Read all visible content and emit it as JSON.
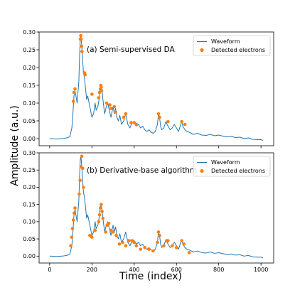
{
  "figure": {
    "xlabel": "Time (index)",
    "ylabel": "Amplitude (a.u.)"
  },
  "colors": {
    "waveform": "#1f77b4",
    "electrons": "#ff7f0e",
    "axes": "#000000",
    "legend_border": "#cccccc"
  },
  "chart_data": [
    {
      "type": "line",
      "title": "",
      "annotation": "(a) Semi-supervised DA",
      "xlabel": "",
      "ylabel": "",
      "xlim": [
        -50,
        1060
      ],
      "ylim": [
        -0.02,
        0.3
      ],
      "xticks": [
        0,
        200,
        400,
        600,
        800,
        1000
      ],
      "xtick_labels": [
        "",
        "",
        "",
        "",
        "",
        ""
      ],
      "yticks": [
        0.0,
        0.05,
        0.1,
        0.15,
        0.2,
        0.25,
        0.3
      ],
      "ytick_labels": [
        "0.00",
        "0.05",
        "0.10",
        "0.15",
        "0.20",
        "0.25",
        "0.30"
      ],
      "legend": {
        "position": "top-right",
        "entries": [
          "Waveform",
          "Detected electrons"
        ]
      },
      "series": [
        {
          "name": "Waveform",
          "kind": "line",
          "x": [
            0,
            30,
            60,
            80,
            95,
            105,
            110,
            115,
            120,
            130,
            138,
            142,
            145,
            148,
            152,
            156,
            160,
            165,
            170,
            175,
            180,
            190,
            200,
            208,
            215,
            220,
            228,
            235,
            240,
            244,
            248,
            252,
            256,
            260,
            268,
            275,
            282,
            290,
            300,
            306,
            312,
            318,
            325,
            332,
            340,
            350,
            360,
            370,
            380,
            390,
            400,
            410,
            420,
            430,
            440,
            450,
            460,
            470,
            480,
            490,
            500,
            510,
            515,
            520,
            525,
            530,
            540,
            550,
            560,
            570,
            580,
            590,
            600,
            610,
            620,
            625,
            630,
            640,
            650,
            660,
            680,
            700,
            720,
            740,
            760,
            780,
            800,
            820,
            840,
            860,
            880,
            900,
            920,
            940,
            960,
            980,
            1000,
            1010
          ],
          "y": [
            0.0,
            -0.001,
            0.0,
            0.002,
            0.005,
            0.03,
            0.07,
            0.12,
            0.135,
            0.1,
            0.16,
            0.24,
            0.28,
            0.29,
            0.26,
            0.22,
            0.185,
            0.17,
            0.14,
            0.11,
            0.12,
            0.09,
            0.06,
            0.07,
            0.1,
            0.08,
            0.09,
            0.115,
            0.145,
            0.15,
            0.135,
            0.11,
            0.09,
            0.07,
            0.09,
            0.1,
            0.08,
            0.06,
            0.09,
            0.07,
            0.085,
            0.06,
            0.05,
            0.065,
            0.04,
            0.05,
            0.07,
            0.04,
            0.03,
            0.045,
            0.045,
            0.035,
            0.04,
            0.03,
            0.035,
            0.025,
            0.02,
            0.025,
            0.018,
            0.015,
            0.02,
            0.04,
            0.07,
            0.06,
            0.035,
            0.025,
            0.03,
            0.048,
            0.035,
            0.025,
            0.03,
            0.04,
            0.03,
            0.02,
            0.04,
            0.048,
            0.035,
            0.025,
            0.02,
            0.018,
            0.012,
            0.015,
            0.01,
            0.009,
            0.012,
            0.008,
            0.01,
            0.007,
            0.005,
            0.006,
            0.003,
            0.004,
            0.0,
            0.002,
            -0.002,
            -0.003,
            -0.003,
            -0.005
          ]
        },
        {
          "name": "Detected electrons",
          "kind": "scatter",
          "x": [
            112,
            115,
            120,
            145,
            147,
            149,
            151,
            153,
            165,
            168,
            200,
            232,
            236,
            240,
            242,
            244,
            246,
            270,
            285,
            290,
            306,
            312,
            350,
            360,
            385,
            400,
            410,
            515,
            520,
            560,
            625,
            640
          ],
          "y": [
            0.105,
            0.13,
            0.14,
            0.28,
            0.29,
            0.28,
            0.26,
            0.245,
            0.185,
            0.18,
            0.125,
            0.115,
            0.13,
            0.14,
            0.15,
            0.145,
            0.135,
            0.1,
            0.095,
            0.085,
            0.09,
            0.075,
            0.06,
            0.07,
            0.045,
            0.045,
            0.04,
            0.07,
            0.06,
            0.048,
            0.048,
            0.04
          ]
        }
      ]
    },
    {
      "type": "line",
      "title": "",
      "annotation": "(b) Derivative-base algorithm",
      "xlabel": "",
      "ylabel": "",
      "xlim": [
        -50,
        1060
      ],
      "ylim": [
        -0.02,
        0.3
      ],
      "xticks": [
        0,
        200,
        400,
        600,
        800,
        1000
      ],
      "xtick_labels": [
        "0",
        "200",
        "400",
        "600",
        "800",
        "1000"
      ],
      "yticks": [
        0.0,
        0.05,
        0.1,
        0.15,
        0.2,
        0.25,
        0.3
      ],
      "ytick_labels": [
        "0.00",
        "0.05",
        "0.10",
        "0.15",
        "0.20",
        "0.25",
        "0.30"
      ],
      "legend": {
        "position": "top-right",
        "entries": [
          "Waveform",
          "Detected electrons"
        ]
      },
      "series": [
        {
          "name": "Waveform",
          "kind": "line",
          "x": [
            0,
            30,
            60,
            80,
            95,
            105,
            110,
            115,
            120,
            130,
            138,
            142,
            145,
            148,
            152,
            156,
            160,
            165,
            170,
            175,
            180,
            190,
            200,
            208,
            215,
            220,
            228,
            235,
            240,
            244,
            248,
            252,
            256,
            260,
            268,
            275,
            282,
            290,
            300,
            306,
            312,
            318,
            325,
            332,
            340,
            350,
            360,
            370,
            380,
            390,
            400,
            410,
            420,
            430,
            440,
            450,
            460,
            470,
            480,
            490,
            500,
            510,
            515,
            520,
            525,
            530,
            540,
            550,
            560,
            570,
            580,
            590,
            600,
            610,
            620,
            625,
            630,
            640,
            650,
            660,
            680,
            700,
            720,
            740,
            760,
            780,
            800,
            820,
            840,
            860,
            880,
            900,
            920,
            940,
            960,
            980,
            1000,
            1010
          ],
          "y": [
            0.0,
            -0.001,
            0.0,
            0.002,
            0.005,
            0.03,
            0.07,
            0.12,
            0.135,
            0.1,
            0.16,
            0.24,
            0.28,
            0.29,
            0.26,
            0.22,
            0.185,
            0.17,
            0.14,
            0.11,
            0.12,
            0.09,
            0.06,
            0.07,
            0.1,
            0.08,
            0.09,
            0.115,
            0.145,
            0.15,
            0.135,
            0.11,
            0.09,
            0.07,
            0.09,
            0.1,
            0.08,
            0.06,
            0.09,
            0.07,
            0.085,
            0.06,
            0.05,
            0.065,
            0.04,
            0.05,
            0.07,
            0.04,
            0.03,
            0.045,
            0.045,
            0.035,
            0.04,
            0.03,
            0.035,
            0.025,
            0.02,
            0.025,
            0.018,
            0.015,
            0.02,
            0.04,
            0.07,
            0.06,
            0.035,
            0.025,
            0.03,
            0.048,
            0.035,
            0.025,
            0.03,
            0.04,
            0.03,
            0.02,
            0.04,
            0.048,
            0.035,
            0.025,
            0.02,
            0.018,
            0.012,
            0.015,
            0.01,
            0.009,
            0.012,
            0.008,
            0.01,
            0.007,
            0.005,
            0.006,
            0.003,
            0.004,
            0.0,
            0.002,
            -0.002,
            -0.003,
            -0.003,
            -0.005
          ]
        },
        {
          "name": "Detected electrons",
          "kind": "scatter",
          "x": [
            100,
            104,
            108,
            112,
            116,
            120,
            140,
            144,
            148,
            152,
            156,
            160,
            190,
            200,
            215,
            232,
            236,
            240,
            244,
            248,
            252,
            265,
            272,
            280,
            290,
            300,
            315,
            330,
            345,
            360,
            375,
            390,
            400,
            410,
            430,
            450,
            470,
            490,
            510,
            515,
            520,
            540,
            555,
            560,
            580,
            600,
            625,
            635,
            660
          ],
          "y": [
            0.03,
            0.055,
            0.08,
            0.105,
            0.125,
            0.14,
            0.18,
            0.22,
            0.26,
            0.29,
            0.255,
            0.2,
            0.06,
            0.055,
            0.075,
            0.1,
            0.12,
            0.14,
            0.15,
            0.13,
            0.11,
            0.07,
            0.09,
            0.095,
            0.075,
            0.07,
            0.06,
            0.035,
            0.04,
            0.03,
            0.045,
            0.045,
            0.04,
            0.03,
            0.02,
            0.025,
            0.02,
            0.015,
            0.04,
            0.07,
            0.06,
            0.03,
            0.045,
            0.045,
            0.03,
            0.025,
            0.045,
            0.035,
            0.01
          ]
        }
      ]
    }
  ]
}
